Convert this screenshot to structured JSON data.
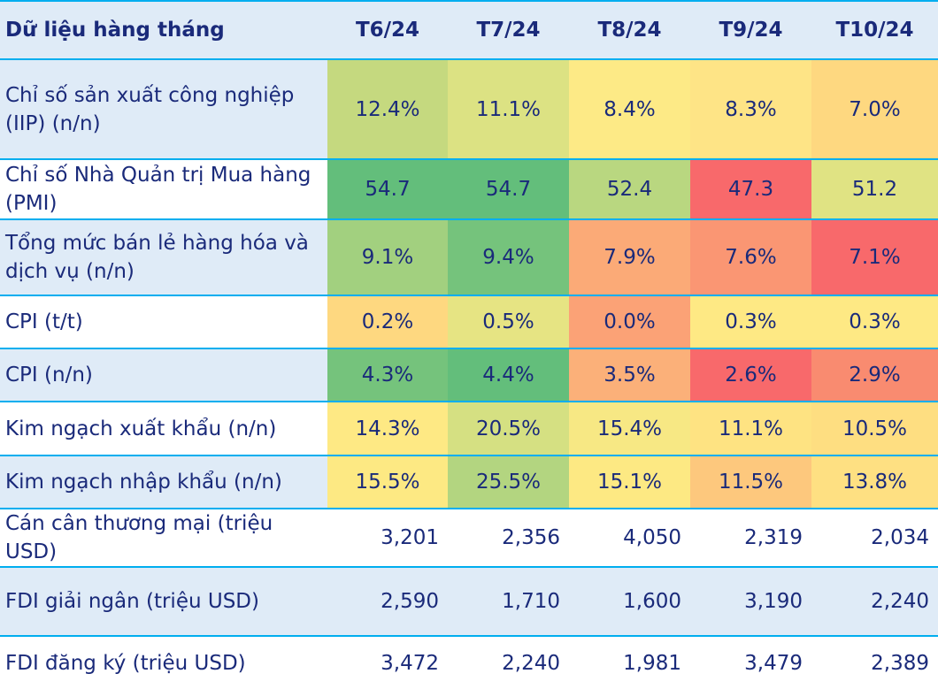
{
  "chart_data": {
    "type": "heatmap",
    "header_label": "Dữ liệu hàng tháng",
    "columns": [
      "T6/24",
      "T7/24",
      "T8/24",
      "T9/24",
      "T10/24"
    ],
    "rows": [
      {
        "label": "Chỉ số sản xuất công nghiệp (IIP) (n/n)",
        "values": [
          "12.4%",
          "11.1%",
          "8.4%",
          "8.3%",
          "7.0%"
        ],
        "colors": [
          "#c5d97f",
          "#dce283",
          "#fdea86",
          "#fee486",
          "#fed880"
        ]
      },
      {
        "label": "Chỉ số Nhà Quản trị Mua hàng (PMI)",
        "values": [
          "54.7",
          "54.7",
          "52.4",
          "47.3",
          "51.2"
        ],
        "colors": [
          "#63be7b",
          "#63be7b",
          "#b9d780",
          "#f8696b",
          "#e0e383"
        ]
      },
      {
        "label": "Tổng mức bán lẻ hàng hóa và dịch vụ (n/n)",
        "values": [
          "9.1%",
          "9.4%",
          "7.9%",
          "7.6%",
          "7.1%"
        ],
        "colors": [
          "#a2d07f",
          "#75c37c",
          "#fbaa77",
          "#fa9673",
          "#f8696b"
        ]
      },
      {
        "label": "CPI (t/t)",
        "values": [
          "0.2%",
          "0.5%",
          "0.0%",
          "0.3%",
          "0.3%"
        ],
        "colors": [
          "#fed880",
          "#e6e483",
          "#fba276",
          "#fee984",
          "#fee984"
        ]
      },
      {
        "label": "CPI (n/n)",
        "values": [
          "4.3%",
          "4.4%",
          "3.5%",
          "2.6%",
          "2.9%"
        ],
        "colors": [
          "#75c37c",
          "#63be7b",
          "#fbb079",
          "#f8696b",
          "#f98b70"
        ]
      },
      {
        "label": "Kim ngạch xuất khẩu (n/n)",
        "values": [
          "14.3%",
          "20.5%",
          "15.4%",
          "11.1%",
          "10.5%"
        ],
        "colors": [
          "#fee984",
          "#d5e082",
          "#f7e884",
          "#fee382",
          "#fede81"
        ]
      },
      {
        "label": "Kim ngạch nhập khẩu (n/n)",
        "values": [
          "15.5%",
          "25.5%",
          "15.1%",
          "11.5%",
          "13.8%"
        ],
        "colors": [
          "#fde983",
          "#b3d580",
          "#fde983",
          "#fdc87d",
          "#fee082"
        ]
      },
      {
        "label": "Cán cân thương mại (triệu USD)",
        "values": [
          "3,201",
          "2,356",
          "4,050",
          "2,319",
          "2,034"
        ],
        "colors": null
      },
      {
        "label": "FDI giải ngân (triệu USD)",
        "values": [
          "2,590",
          "1,710",
          "1,600",
          "3,190",
          "2,240"
        ],
        "colors": null
      },
      {
        "label": "FDI đăng ký (triệu USD)",
        "values": [
          "3,472",
          "2,240",
          "1,981",
          "3,479",
          "2,389"
        ],
        "colors": null
      }
    ]
  }
}
